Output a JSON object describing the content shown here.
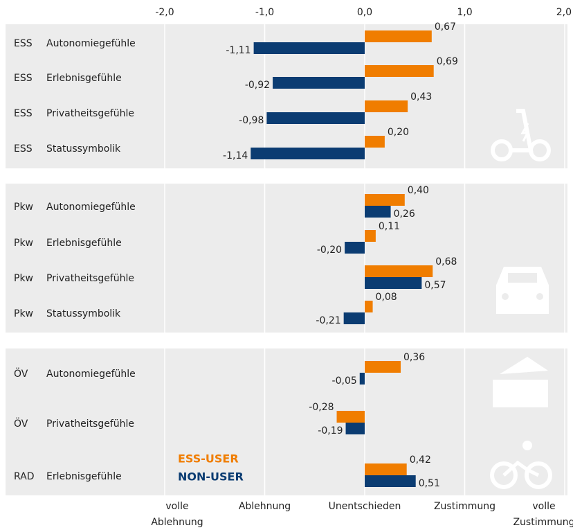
{
  "chart_data": {
    "type": "bar",
    "orientation": "horizontal",
    "modes": [
      "ESS",
      "ESS",
      "ESS",
      "ESS",
      "Pkw",
      "Pkw",
      "Pkw",
      "Pkw",
      "ÖV",
      "ÖV",
      "RAD"
    ],
    "categories": [
      "Autonomiegefühle",
      "Erlebnisgefühle",
      "Privatheitsgefühle",
      "Statussymbolik",
      "Autonomiegefühle",
      "Erlebnisgefühle",
      "Privatheitsgefühle",
      "Statussymbolik",
      "Autonomiegefühle",
      "Privatheitsgefühle",
      "Erlebnisgefühle"
    ],
    "series": [
      {
        "name": "ESS-USER",
        "color": "#f07d00",
        "values": [
          0.67,
          0.69,
          0.43,
          0.2,
          0.4,
          0.11,
          0.68,
          0.08,
          0.36,
          -0.28,
          0.42
        ],
        "value_labels": [
          "0,67",
          "0,69",
          "0,43",
          "0,20",
          "0,40",
          "0,11",
          "0,68",
          "0,08",
          "0,36",
          "-0,28",
          "0,42"
        ]
      },
      {
        "name": "NON-USER",
        "color": "#0b3c72",
        "values": [
          -1.11,
          -0.92,
          -0.98,
          -1.14,
          0.26,
          -0.2,
          0.57,
          -0.21,
          -0.05,
          -0.19,
          0.51
        ],
        "value_labels": [
          "-1,11",
          "-0,92",
          "-0,98",
          "-1,14",
          "0,26",
          "-0,20",
          "0,57",
          "-0,21",
          "-0,05",
          "-0,19",
          "0,51"
        ]
      }
    ],
    "xlim": [
      -2,
      2
    ],
    "xticks": [
      {
        "value": -2,
        "label": "-2,0"
      },
      {
        "value": -1,
        "label": "-1,0"
      },
      {
        "value": 0,
        "label": "0,0"
      },
      {
        "value": 1,
        "label": "1,0"
      },
      {
        "value": 2,
        "label": "2,0"
      }
    ],
    "scale_labels": [
      {
        "value": -2,
        "lines": [
          "volle",
          "Ablehnung"
        ]
      },
      {
        "value": -1,
        "lines": [
          "Ablehnung"
        ]
      },
      {
        "value": 0,
        "lines": [
          "Unentschieden"
        ]
      },
      {
        "value": 1,
        "lines": [
          "Zustimmung"
        ]
      },
      {
        "value": 2,
        "lines": [
          "volle",
          "Zustimmung"
        ]
      }
    ],
    "grid": true
  }
}
